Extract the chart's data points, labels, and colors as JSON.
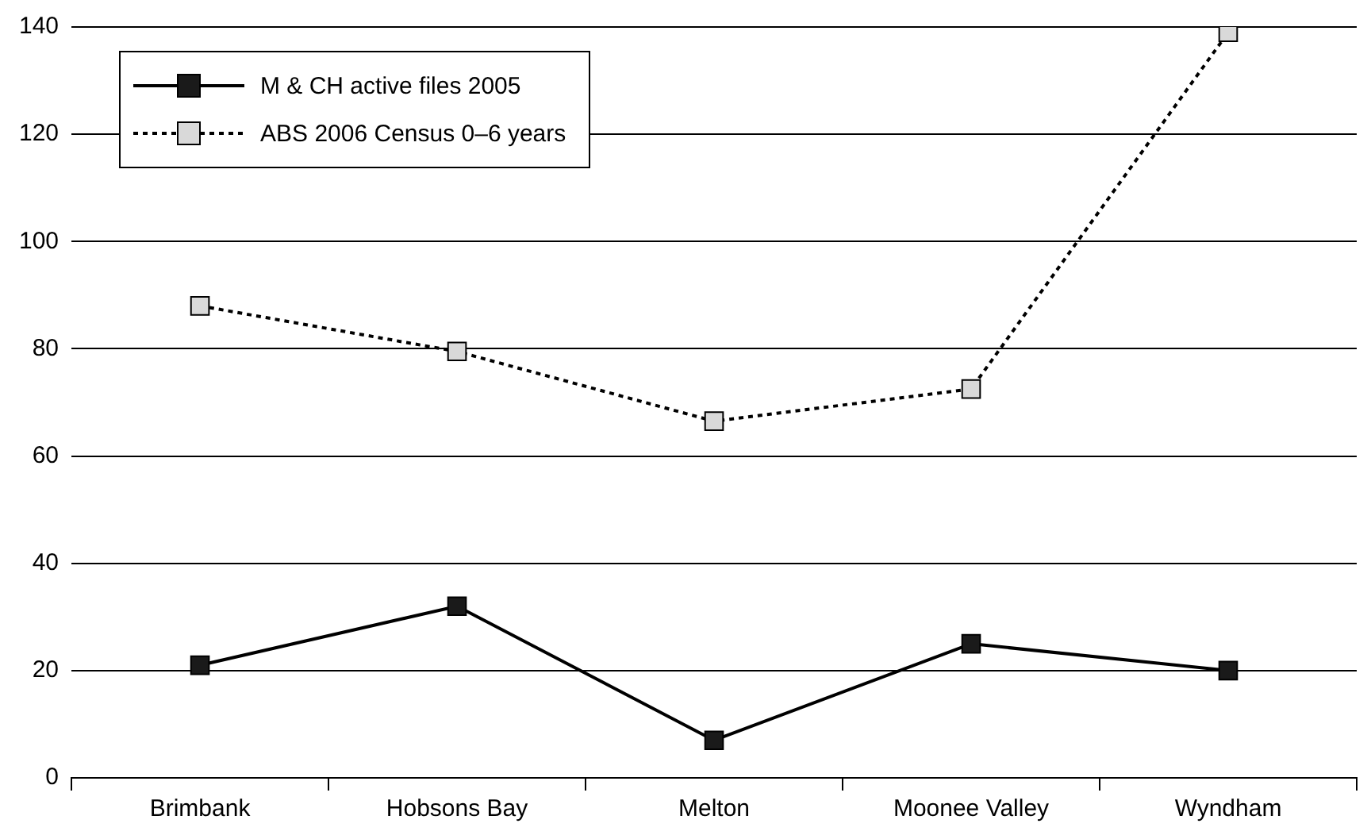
{
  "chart_data": {
    "type": "line",
    "categories": [
      "Brimbank",
      "Hobsons Bay",
      "Melton",
      "Moonee Valley",
      "Wyndham"
    ],
    "series": [
      {
        "name": "M & CH active files 2005",
        "color": "#1a1a1a",
        "line_style": "solid",
        "values": [
          21,
          32,
          7,
          25,
          20
        ]
      },
      {
        "name": "ABS 2006 Census 0–6 years",
        "color": "#d9d9d9",
        "line_style": "dotted",
        "values": [
          88,
          79.5,
          66.5,
          72.5,
          139
        ]
      }
    ],
    "ylim": [
      0,
      140
    ],
    "yticks": [
      0,
      20,
      40,
      60,
      80,
      100,
      120,
      140
    ],
    "grid": "y",
    "legend": "top left",
    "marker": "square"
  }
}
